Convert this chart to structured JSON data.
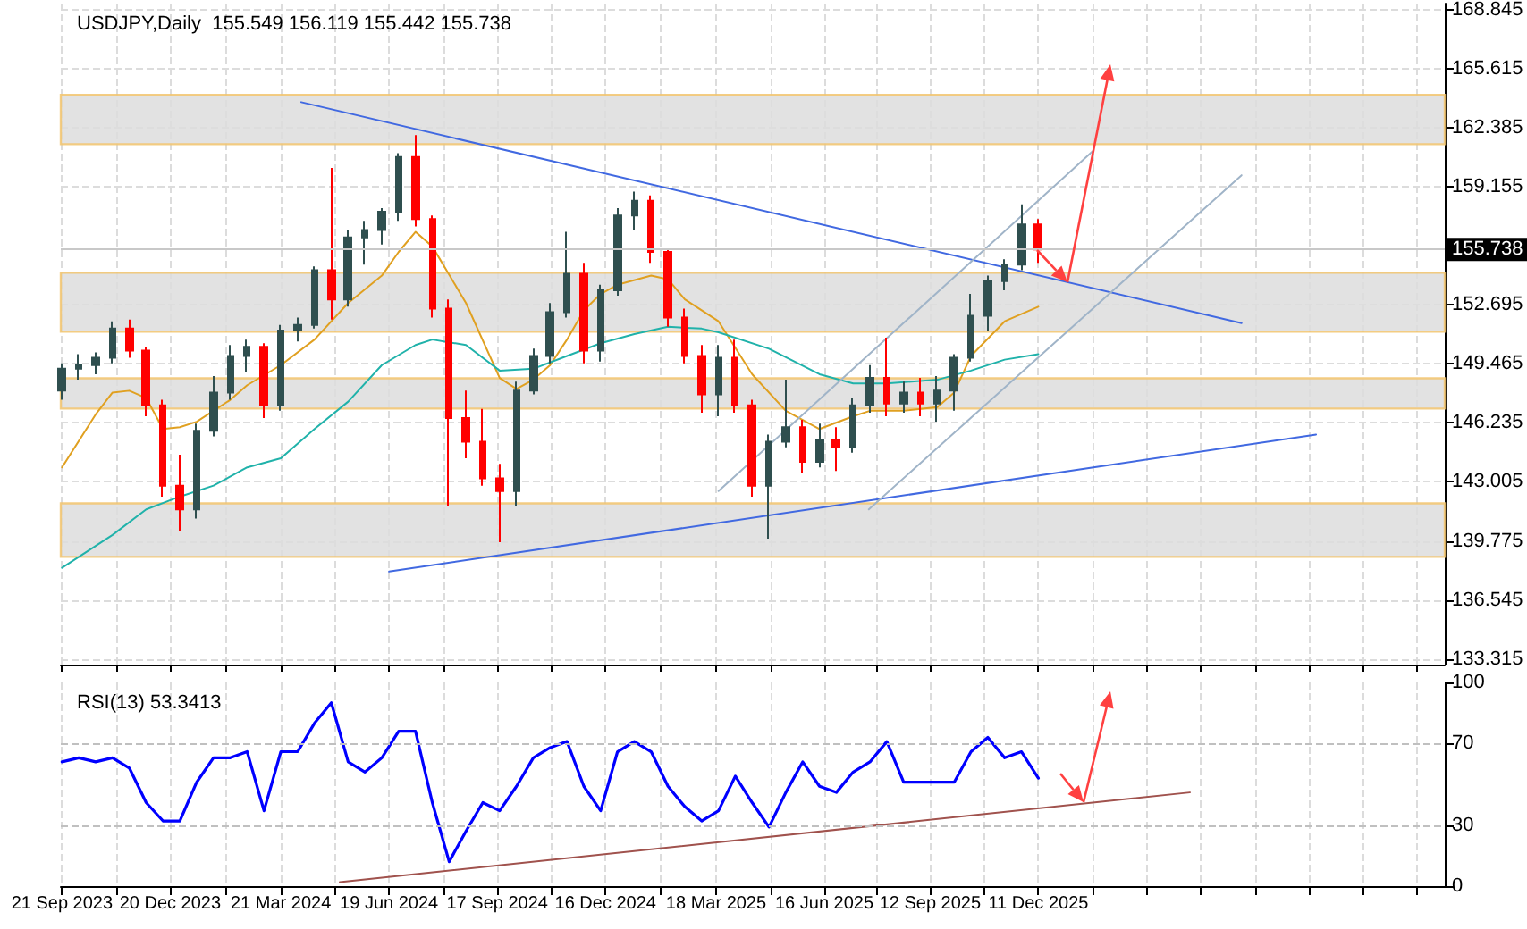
{
  "chart_data": [
    {
      "type": "candlestick",
      "title": "USDJPY,Daily  155.549 156.119 155.442 155.738",
      "marker": "none",
      "grid": true,
      "tick_labels": "y",
      "xlim": [
        "2023-09-20",
        "2026-11-14"
      ],
      "xticks": [
        {
          "value": "2023-09-21",
          "label": null
        },
        {
          "value": "2023-11-05",
          "label": null
        },
        {
          "value": "2023-12-20",
          "label": null
        },
        {
          "value": "2024-02-04",
          "label": null
        },
        {
          "value": "2024-03-21",
          "label": null
        },
        {
          "value": "2024-05-05",
          "label": null
        },
        {
          "value": "2024-06-19",
          "label": null
        },
        {
          "value": "2024-08-03",
          "label": null
        },
        {
          "value": "2024-09-17",
          "label": null
        },
        {
          "value": "2024-11-01",
          "label": null
        },
        {
          "value": "2024-12-16",
          "label": null
        },
        {
          "value": "2025-01-31",
          "label": null
        },
        {
          "value": "2025-03-18",
          "label": null
        },
        {
          "value": "2025-05-02",
          "label": null
        },
        {
          "value": "2025-06-16",
          "label": null
        },
        {
          "value": "2025-07-30",
          "label": null
        },
        {
          "value": "2025-09-12",
          "label": null
        },
        {
          "value": "2025-10-27",
          "label": null
        },
        {
          "value": "2025-12-11",
          "label": null
        },
        {
          "value": "2026-01-25",
          "label": null
        },
        {
          "value": "2026-03-11",
          "label": null
        },
        {
          "value": "2026-04-25",
          "label": null
        },
        {
          "value": "2026-06-09",
          "label": null
        },
        {
          "value": "2026-07-24",
          "label": null
        },
        {
          "value": "2026-09-07",
          "label": null
        },
        {
          "value": "2026-10-22",
          "label": null
        }
      ],
      "ylim": [
        133.0,
        169.2
      ],
      "yticks": [
        133.315,
        136.545,
        139.775,
        143.005,
        146.235,
        149.465,
        152.695,
        159.155,
        162.385,
        165.615,
        168.845
      ],
      "ref_lines": [
        {
          "axis": "y",
          "value": 155.738,
          "label": "155.738",
          "color": "#c8c8c8"
        }
      ],
      "bands": [
        {
          "axis": "y",
          "from": 161.5,
          "to": 164.2,
          "color": "#dddddd"
        },
        {
          "axis": "y",
          "from": 151.23,
          "to": 154.46,
          "color": "#dddddd"
        },
        {
          "axis": "y",
          "from": 147.02,
          "to": 148.68,
          "color": "#dddddd"
        },
        {
          "axis": "y",
          "from": 138.9,
          "to": 141.83,
          "color": "#dddddd"
        }
      ],
      "series": [
        {
          "x": [
            "2023-09-21",
            "2023-10-05",
            "2023-10-19",
            "2023-11-02",
            "2023-11-16",
            "2023-11-30",
            "2023-12-14",
            "2023-12-28",
            "2024-01-11",
            "2024-01-25",
            "2024-02-08",
            "2024-02-22",
            "2024-03-07",
            "2024-03-21",
            "2024-04-04",
            "2024-04-18",
            "2024-05-02",
            "2024-05-16",
            "2024-05-30",
            "2024-06-13",
            "2024-06-27",
            "2024-07-11",
            "2024-07-25",
            "2024-08-08",
            "2024-08-22",
            "2024-09-05",
            "2024-09-19",
            "2024-10-03",
            "2024-10-17",
            "2024-10-31",
            "2024-11-14",
            "2024-11-28",
            "2024-12-12",
            "2024-12-26",
            "2025-01-09",
            "2025-01-23",
            "2025-02-06",
            "2025-02-20",
            "2025-03-06",
            "2025-03-20",
            "2025-04-03",
            "2025-04-17",
            "2025-05-01",
            "2025-05-15",
            "2025-05-29",
            "2025-06-12",
            "2025-06-26",
            "2025-07-10",
            "2025-07-24",
            "2025-08-07",
            "2025-08-21",
            "2025-09-04",
            "2025-09-18",
            "2025-10-02",
            "2025-10-16",
            "2025-10-30",
            "2025-11-13",
            "2025-11-27",
            "2025-12-11"
          ],
          "ohlc": [
            [
              148.0,
              149.5,
              147.5,
              149.2
            ],
            [
              149.2,
              150.0,
              148.6,
              149.4
            ],
            [
              149.4,
              150.1,
              148.9,
              149.8
            ],
            [
              149.8,
              151.8,
              149.5,
              151.4
            ],
            [
              151.4,
              151.9,
              149.8,
              150.2
            ],
            [
              150.2,
              150.4,
              146.6,
              147.2
            ],
            [
              147.2,
              147.5,
              142.2,
              142.8
            ],
            [
              142.8,
              144.5,
              140.3,
              141.5
            ],
            [
              141.5,
              146.2,
              141.0,
              145.8
            ],
            [
              145.8,
              148.8,
              145.5,
              147.9
            ],
            [
              147.9,
              150.5,
              147.5,
              149.9
            ],
            [
              149.9,
              150.8,
              149.0,
              150.4
            ],
            [
              150.4,
              150.6,
              146.5,
              147.2
            ],
            [
              147.2,
              151.6,
              146.9,
              151.3
            ],
            [
              151.3,
              152.0,
              150.7,
              151.6
            ],
            [
              151.6,
              154.8,
              151.4,
              154.6
            ],
            [
              154.6,
              160.2,
              151.9,
              153.0
            ],
            [
              153.0,
              156.8,
              152.6,
              156.4
            ],
            [
              156.4,
              157.3,
              154.9,
              156.8
            ],
            [
              156.8,
              158.0,
              156.0,
              157.8
            ],
            [
              157.8,
              161.0,
              157.3,
              160.8
            ],
            [
              160.8,
              162.0,
              157.0,
              157.4
            ],
            [
              157.4,
              157.6,
              152.0,
              152.5
            ],
            [
              152.5,
              153.0,
              141.7,
              146.5
            ],
            [
              146.5,
              148.0,
              144.3,
              145.2
            ],
            [
              145.2,
              147.0,
              142.8,
              143.2
            ],
            [
              143.2,
              144.0,
              139.7,
              142.5
            ],
            [
              142.5,
              148.5,
              141.7,
              148.0
            ],
            [
              148.0,
              150.3,
              147.8,
              149.9
            ],
            [
              149.9,
              152.8,
              149.5,
              152.3
            ],
            [
              152.3,
              156.7,
              152.0,
              154.4
            ],
            [
              154.4,
              155.0,
              149.5,
              150.2
            ],
            [
              150.2,
              153.8,
              149.6,
              153.5
            ],
            [
              153.5,
              158.0,
              153.2,
              157.6
            ],
            [
              157.6,
              158.9,
              156.8,
              158.4
            ],
            [
              158.4,
              158.7,
              155.0,
              155.6
            ],
            [
              155.6,
              155.8,
              151.5,
              152.0
            ],
            [
              152.0,
              152.5,
              149.5,
              149.9
            ],
            [
              149.9,
              150.5,
              146.8,
              147.8
            ],
            [
              147.8,
              150.5,
              146.6,
              149.8
            ],
            [
              149.8,
              150.8,
              146.8,
              147.2
            ],
            [
              147.2,
              147.5,
              142.2,
              142.8
            ],
            [
              142.8,
              145.6,
              139.9,
              145.2
            ],
            [
              145.2,
              148.6,
              144.9,
              146.0
            ],
            [
              146.0,
              146.4,
              143.5,
              144.1
            ],
            [
              144.1,
              146.2,
              143.8,
              145.3
            ],
            [
              145.3,
              146.0,
              143.6,
              144.9
            ],
            [
              144.9,
              147.6,
              144.6,
              147.2
            ],
            [
              147.2,
              149.4,
              146.8,
              148.7
            ],
            [
              148.7,
              150.9,
              146.6,
              147.3
            ],
            [
              147.3,
              148.5,
              146.8,
              147.9
            ],
            [
              147.9,
              148.7,
              146.6,
              147.3
            ],
            [
              147.3,
              148.8,
              146.3,
              148.0
            ],
            [
              148.0,
              150.0,
              146.9,
              149.8
            ],
            [
              149.8,
              153.3,
              149.6,
              152.1
            ],
            [
              152.1,
              154.3,
              151.3,
              154.0
            ],
            [
              154.0,
              155.2,
              153.5,
              154.9
            ],
            [
              154.9,
              158.2,
              154.6,
              157.1
            ],
            [
              157.1,
              157.4,
              155.0,
              155.738
            ]
          ],
          "colors": [
            "#2f4f4f",
            "#2f4f4f",
            "#2f4f4f",
            "#2f4f4f",
            "#ff0000",
            "#ff0000",
            "#ff0000",
            "#ff0000",
            "#2f4f4f",
            "#2f4f4f",
            "#2f4f4f",
            "#2f4f4f",
            "#ff0000",
            "#2f4f4f",
            "#2f4f4f",
            "#2f4f4f",
            "#ff0000",
            "#2f4f4f",
            "#2f4f4f",
            "#2f4f4f",
            "#2f4f4f",
            "#ff0000",
            "#ff0000",
            "#ff0000",
            "#ff0000",
            "#ff0000",
            "#ff0000",
            "#2f4f4f",
            "#2f4f4f",
            "#2f4f4f",
            "#2f4f4f",
            "#ff0000",
            "#2f4f4f",
            "#2f4f4f",
            "#2f4f4f",
            "#ff0000",
            "#ff0000",
            "#ff0000",
            "#ff0000",
            "#2f4f4f",
            "#ff0000",
            "#ff0000",
            "#2f4f4f",
            "#2f4f4f",
            "#ff0000",
            "#2f4f4f",
            "#ff0000",
            "#2f4f4f",
            "#2f4f4f",
            "#ff0000",
            "#2f4f4f",
            "#ff0000",
            "#2f4f4f",
            "#2f4f4f",
            "#2f4f4f",
            "#2f4f4f",
            "#2f4f4f",
            "#2f4f4f",
            "#ff0000"
          ]
        },
        {
          "type": "line",
          "color": "#e0a020",
          "x": [
            "2023-09-21",
            "2023-10-19",
            "2023-11-02",
            "2023-11-16",
            "2023-11-30",
            "2023-12-14",
            "2023-12-28",
            "2024-01-11",
            "2024-02-08",
            "2024-02-22",
            "2024-03-21",
            "2024-04-18",
            "2024-05-16",
            "2024-06-13",
            "2024-06-27",
            "2024-07-11",
            "2024-07-25",
            "2024-08-22",
            "2024-09-19",
            "2024-10-03",
            "2024-10-17",
            "2024-10-31",
            "2024-11-14",
            "2024-11-28",
            "2024-12-12",
            "2024-12-26",
            "2025-01-23",
            "2025-02-06",
            "2025-02-20",
            "2025-03-20",
            "2025-04-17",
            "2025-05-15",
            "2025-06-12",
            "2025-07-10",
            "2025-07-24",
            "2025-08-21",
            "2025-09-18",
            "2025-10-02",
            "2025-10-16",
            "2025-11-13",
            "2025-12-11"
          ],
          "values": [
            143.8,
            146.7,
            147.9,
            148.0,
            147.6,
            145.9,
            146.0,
            146.3,
            147.5,
            148.3,
            149.4,
            150.8,
            152.8,
            154.3,
            155.6,
            156.7,
            155.9,
            152.8,
            148.7,
            148.1,
            148.6,
            149.4,
            150.8,
            152.4,
            153.3,
            153.8,
            154.3,
            154.1,
            153.0,
            151.8,
            148.9,
            146.9,
            145.9,
            146.6,
            146.9,
            146.9,
            147.1,
            147.9,
            149.9,
            151.8,
            152.6
          ]
        },
        {
          "type": "line",
          "color": "#20b2aa",
          "x": [
            "2023-09-21",
            "2023-11-02",
            "2023-11-30",
            "2023-12-28",
            "2024-01-25",
            "2024-02-22",
            "2024-03-21",
            "2024-04-18",
            "2024-05-16",
            "2024-06-13",
            "2024-07-11",
            "2024-07-25",
            "2024-08-22",
            "2024-09-19",
            "2024-10-17",
            "2024-11-14",
            "2024-12-12",
            "2025-01-09",
            "2025-02-06",
            "2025-03-06",
            "2025-03-20",
            "2025-05-01",
            "2025-06-12",
            "2025-07-10",
            "2025-08-07",
            "2025-09-18",
            "2025-10-16",
            "2025-11-13",
            "2025-12-11"
          ],
          "values": [
            138.3,
            140.1,
            141.5,
            142.2,
            142.8,
            143.8,
            144.3,
            145.9,
            147.4,
            149.4,
            150.5,
            150.8,
            150.5,
            149.1,
            149.2,
            149.9,
            150.6,
            151.1,
            151.5,
            151.4,
            151.2,
            150.3,
            148.9,
            148.4,
            148.4,
            148.6,
            149.1,
            149.7,
            150.0
          ]
        },
        {
          "type": "line",
          "color": "#4169e1",
          "x": [
            "2024-04-07",
            "2026-05-29"
          ],
          "values": [
            163.8,
            151.7
          ]
        },
        {
          "type": "line",
          "color": "#4169e1",
          "x": [
            "2024-06-19",
            "2026-07-30"
          ],
          "values": [
            138.1,
            145.6
          ]
        },
        {
          "type": "line",
          "color": "#a0b4c8",
          "x": [
            "2025-03-20",
            "2026-01-25"
          ],
          "values": [
            142.5,
            161.1
          ]
        },
        {
          "type": "line",
          "color": "#a0b4c8",
          "x": [
            "2025-07-23",
            "2026-05-29"
          ],
          "values": [
            141.5,
            159.8
          ]
        }
      ]
    },
    {
      "type": "line",
      "title": "RSI(13) 53.3413",
      "marker": "none",
      "grid": "x",
      "xlim": [
        "2023-09-20",
        "2026-11-14"
      ],
      "xticks": [
        {
          "value": "2023-09-21",
          "label": "21 Sep 2023"
        },
        {
          "value": "2023-11-05",
          "label": null
        },
        {
          "value": "2023-12-20",
          "label": "20 Dec 2023"
        },
        {
          "value": "2024-02-04",
          "label": null
        },
        {
          "value": "2024-03-21",
          "label": "21 Mar 2024"
        },
        {
          "value": "2024-05-05",
          "label": null
        },
        {
          "value": "2024-06-19",
          "label": "19 Jun 2024"
        },
        {
          "value": "2024-08-03",
          "label": null
        },
        {
          "value": "2024-09-17",
          "label": "17 Sep 2024"
        },
        {
          "value": "2024-11-01",
          "label": null
        },
        {
          "value": "2024-12-16",
          "label": "16 Dec 2024"
        },
        {
          "value": "2025-01-31",
          "label": null
        },
        {
          "value": "2025-03-18",
          "label": "18 Mar 2025"
        },
        {
          "value": "2025-05-02",
          "label": null
        },
        {
          "value": "2025-06-16",
          "label": "16 Jun 2025"
        },
        {
          "value": "2025-07-30",
          "label": null
        },
        {
          "value": "2025-09-12",
          "label": "12 Sep 2025"
        },
        {
          "value": "2025-10-27",
          "label": null
        },
        {
          "value": "2025-12-11",
          "label": "11 Dec 2025"
        },
        {
          "value": "2026-01-25",
          "label": null
        },
        {
          "value": "2026-03-11",
          "label": null
        },
        {
          "value": "2026-04-25",
          "label": null
        },
        {
          "value": "2026-06-09",
          "label": null
        },
        {
          "value": "2026-07-24",
          "label": null
        },
        {
          "value": "2026-09-07",
          "label": null
        },
        {
          "value": "2026-10-22",
          "label": null
        }
      ],
      "ylim": [
        0,
        100
      ],
      "yticks": [
        0,
        30,
        70,
        100
      ],
      "ref_lines": [
        {
          "axis": "y",
          "value": 30,
          "color": "#c0c0c0",
          "line_style": "dashed"
        },
        {
          "axis": "y",
          "value": 70,
          "color": "#c0c0c0",
          "line_style": "dashed"
        }
      ],
      "series": [
        {
          "color": "#0000ff",
          "x": [
            "2023-09-21",
            "2023-10-05",
            "2023-10-19",
            "2023-11-02",
            "2023-11-16",
            "2023-11-30",
            "2023-12-14",
            "2023-12-28",
            "2024-01-11",
            "2024-01-25",
            "2024-02-08",
            "2024-02-22",
            "2024-03-07",
            "2024-03-21",
            "2024-04-04",
            "2024-04-18",
            "2024-05-02",
            "2024-05-16",
            "2024-05-30",
            "2024-06-13",
            "2024-06-27",
            "2024-07-11",
            "2024-07-25",
            "2024-08-08",
            "2024-08-22",
            "2024-09-05",
            "2024-09-19",
            "2024-10-03",
            "2024-10-17",
            "2024-10-31",
            "2024-11-14",
            "2024-11-28",
            "2024-12-12",
            "2024-12-26",
            "2025-01-09",
            "2025-01-23",
            "2025-02-06",
            "2025-02-20",
            "2025-03-06",
            "2025-03-20",
            "2025-04-03",
            "2025-04-17",
            "2025-05-01",
            "2025-05-15",
            "2025-05-29",
            "2025-06-12",
            "2025-06-26",
            "2025-07-10",
            "2025-07-24",
            "2025-08-07",
            "2025-08-21",
            "2025-09-04",
            "2025-09-18",
            "2025-10-02",
            "2025-10-16",
            "2025-10-30",
            "2025-11-13",
            "2025-11-27",
            "2025-12-11"
          ],
          "values": [
            61,
            63,
            61,
            63,
            58,
            41,
            32,
            32,
            51,
            63,
            63,
            66,
            37,
            66,
            66,
            80,
            90,
            61,
            56,
            63,
            76,
            76,
            41,
            12,
            27,
            41,
            37,
            49,
            63,
            68,
            71,
            49,
            37,
            66,
            71,
            66,
            49,
            39,
            32,
            37,
            54,
            41,
            29,
            46,
            61,
            49,
            46,
            56,
            61,
            71,
            51,
            51,
            51,
            51,
            66,
            73,
            63,
            66,
            53
          ]
        },
        {
          "type": "line",
          "color": "#a0524d",
          "x": [
            "2024-05-09",
            "2026-04-16"
          ],
          "values": [
            2,
            46
          ]
        }
      ]
    }
  ]
}
